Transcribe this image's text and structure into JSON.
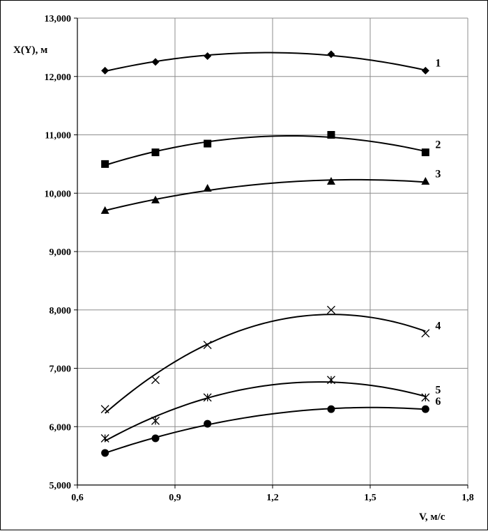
{
  "chart_data": {
    "type": "line",
    "title": "",
    "xlabel": "V, м/с",
    "ylabel": "X(Y), м",
    "xlim": [
      0.6,
      1.8
    ],
    "ylim": [
      5000,
      13000
    ],
    "x_ticks": [
      0.6,
      0.9,
      1.2,
      1.5,
      1.8
    ],
    "x_tick_labels": [
      "0,6",
      "0,9",
      "1,2",
      "1,5",
      "1,8"
    ],
    "y_ticks": [
      5000,
      6000,
      7000,
      8000,
      9000,
      10000,
      11000,
      12000,
      13000
    ],
    "y_tick_labels": [
      "5,000",
      "6,000",
      "7,000",
      "8,000",
      "9,000",
      "10,000",
      "11,000",
      "12,000",
      "13,000"
    ],
    "grid": true,
    "line_color": "#000000",
    "series": [
      {
        "label": "1",
        "marker": "diamond",
        "x": [
          0.685,
          0.84,
          1.0,
          1.38,
          1.67
        ],
        "y": [
          12100,
          12250,
          12350,
          12380,
          12100
        ]
      },
      {
        "label": "2",
        "marker": "square",
        "x": [
          0.685,
          0.84,
          1.0,
          1.38,
          1.67
        ],
        "y": [
          10500,
          10700,
          10850,
          11000,
          10700
        ]
      },
      {
        "label": "3",
        "marker": "triangle",
        "x": [
          0.685,
          0.84,
          1.0,
          1.38,
          1.67
        ],
        "y": [
          9700,
          9880,
          10080,
          10200,
          10200
        ]
      },
      {
        "label": "4",
        "marker": "x",
        "x": [
          0.685,
          0.84,
          1.0,
          1.38,
          1.67
        ],
        "y": [
          6300,
          6800,
          7400,
          8000,
          7600
        ]
      },
      {
        "label": "5",
        "marker": "asterisk",
        "x": [
          0.685,
          0.84,
          1.0,
          1.38,
          1.67
        ],
        "y": [
          5800,
          6100,
          6500,
          6800,
          6500
        ]
      },
      {
        "label": "6",
        "marker": "circle",
        "x": [
          0.685,
          0.84,
          1.0,
          1.38,
          1.67
        ],
        "y": [
          5550,
          5800,
          6050,
          6300,
          6300
        ]
      }
    ]
  }
}
